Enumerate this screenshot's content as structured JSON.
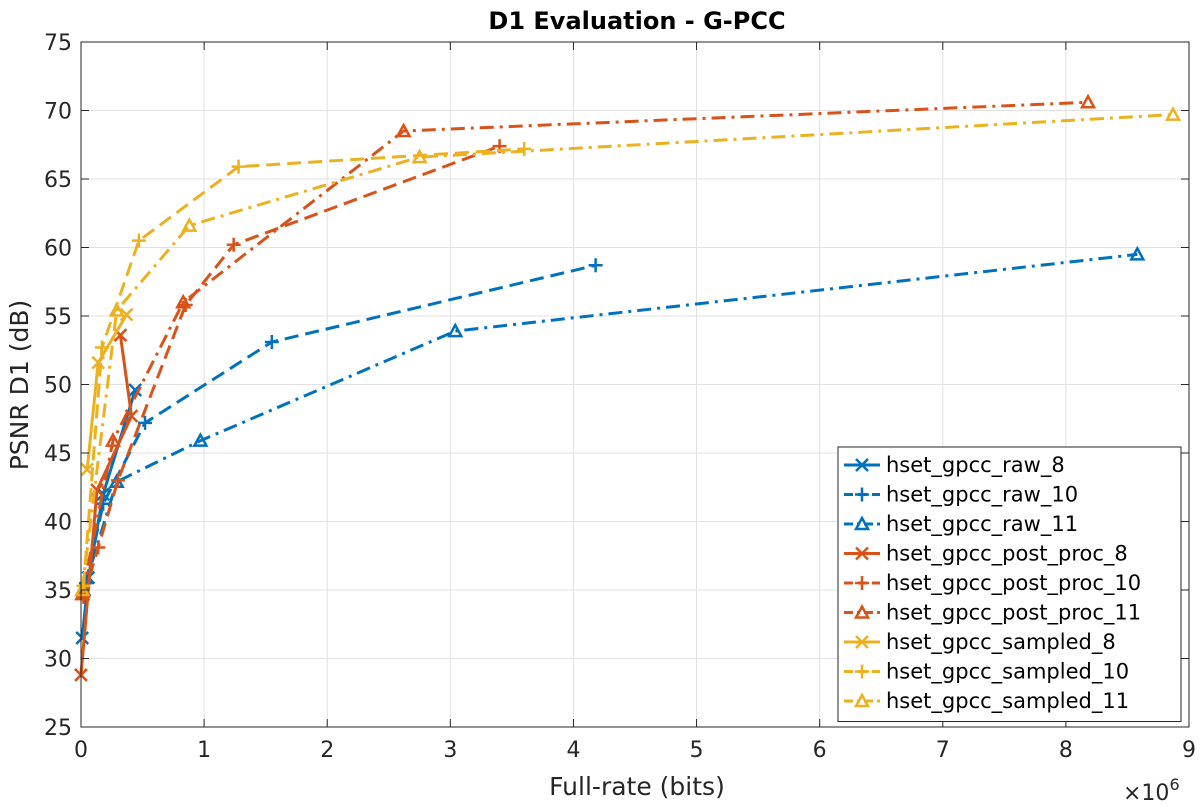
{
  "chart_data": {
    "type": "line",
    "title": "D1 Evaluation - G-PCC",
    "xlabel": "Full-rate (bits)",
    "ylabel": "PSNR D1 (dB)",
    "x_exponent_base": "×10",
    "x_exponent_power": "6",
    "xlim": [
      0,
      9
    ],
    "ylim": [
      25,
      75
    ],
    "xticks": [
      0,
      1,
      2,
      3,
      4,
      5,
      6,
      7,
      8,
      9
    ],
    "yticks": [
      25,
      30,
      35,
      40,
      45,
      50,
      55,
      60,
      65,
      70,
      75
    ],
    "grid": true,
    "legend_location": "bottom-right",
    "series": [
      {
        "name": "hset_gpcc_raw_8",
        "color": "#0072BD",
        "line": "solid",
        "marker": "x",
        "x": [
          0.01,
          0.06,
          0.18,
          0.44
        ],
        "y": [
          31.5,
          35.9,
          42.0,
          49.6
        ]
      },
      {
        "name": "hset_gpcc_raw_10",
        "color": "#0072BD",
        "line": "dashed",
        "marker": "+",
        "x": [
          0.04,
          0.18,
          0.52,
          1.55,
          4.18
        ],
        "y": [
          35.5,
          41.3,
          47.2,
          53.1,
          58.7
        ]
      },
      {
        "name": "hset_gpcc_raw_11",
        "color": "#0072BD",
        "line": "dashdot",
        "marker": "triangle",
        "x": [
          0.02,
          0.29,
          0.97,
          3.04,
          8.58
        ],
        "y": [
          35.0,
          42.9,
          45.9,
          53.9,
          59.5
        ]
      },
      {
        "name": "hset_gpcc_post_proc_8",
        "color": "#D95319",
        "line": "solid",
        "marker": "x",
        "x": [
          0.0,
          0.13,
          0.41,
          0.32
        ],
        "y": [
          28.8,
          42.3,
          47.7,
          53.6
        ]
      },
      {
        "name": "hset_gpcc_post_proc_10",
        "color": "#D95319",
        "line": "dashed",
        "marker": "+",
        "x": [
          0.02,
          0.14,
          0.3,
          0.85,
          1.24,
          3.4
        ],
        "y": [
          34.5,
          38.1,
          43.0,
          55.8,
          60.2,
          67.4
        ]
      },
      {
        "name": "hset_gpcc_post_proc_11",
        "color": "#D95319",
        "line": "dashdot",
        "marker": "triangle",
        "x": [
          0.01,
          0.26,
          0.83,
          2.62,
          8.18
        ],
        "y": [
          34.7,
          45.9,
          56.0,
          68.5,
          70.6
        ]
      },
      {
        "name": "hset_gpcc_sampled_8",
        "color": "#EDB120",
        "line": "solid",
        "marker": "x",
        "x": [
          0.05,
          0.14,
          0.37
        ],
        "y": [
          43.8,
          51.6,
          55.1
        ]
      },
      {
        "name": "hset_gpcc_sampled_10",
        "color": "#EDB120",
        "line": "dashed",
        "marker": "+",
        "x": [
          0.02,
          0.17,
          0.47,
          1.28,
          3.6
        ],
        "y": [
          35.3,
          52.7,
          60.5,
          65.9,
          67.2
        ]
      },
      {
        "name": "hset_gpcc_sampled_11",
        "color": "#EDB120",
        "line": "dashdot",
        "marker": "triangle",
        "x": [
          0.01,
          0.29,
          0.88,
          2.75,
          8.87
        ],
        "y": [
          35.0,
          55.4,
          61.6,
          66.6,
          69.7
        ]
      }
    ]
  }
}
